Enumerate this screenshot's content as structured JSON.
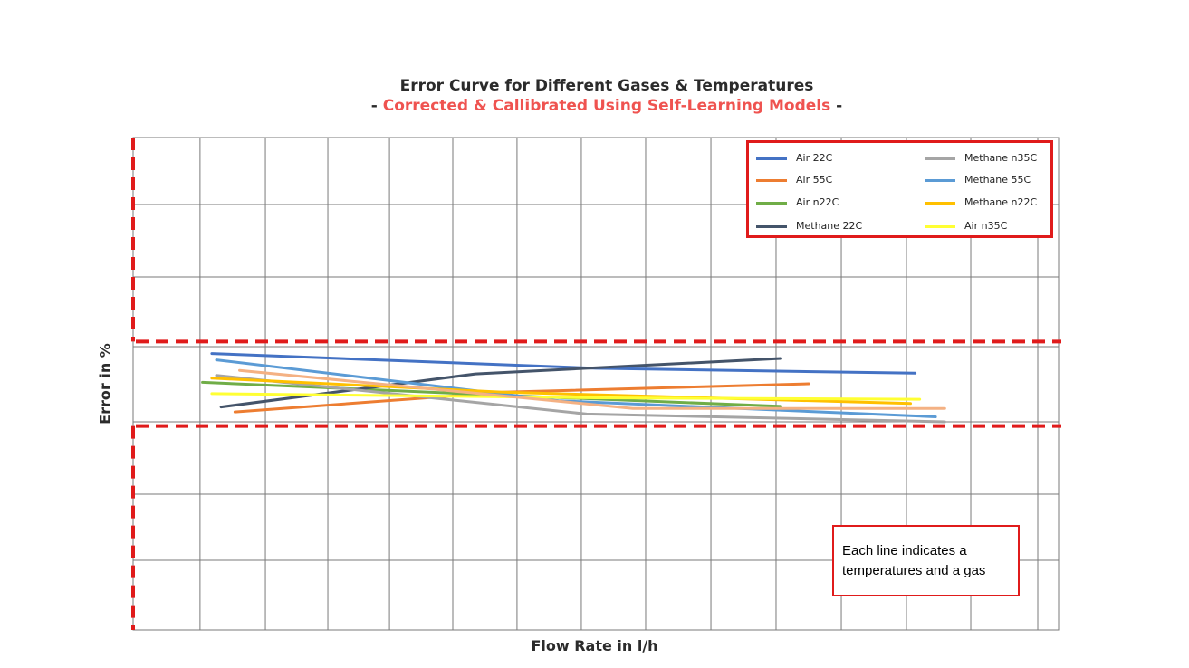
{
  "title": "Error Curve for Different Gases & Temperatures",
  "subtitle": {
    "prefix": "- ",
    "highlight": "Corrected & Callibrated Using Self-Learning Models",
    "suffix": " -"
  },
  "note": "Each line indicates a temperatures and a gas",
  "colors": {
    "tolerance": "#e01b1b",
    "grid": "#7a7a7a"
  },
  "chart_data": {
    "type": "line",
    "title": "Error Curve for Different Gases & Temperatures",
    "subtitle": "- Corrected & Callibrated Using Self-Learning Models -",
    "xlabel": "Flow Rate in l/h",
    "ylabel": "Error in %",
    "tick_labels_shown": false,
    "grid": true,
    "xlim": [
      0,
      1
    ],
    "ylim": [
      -4,
      3
    ],
    "legend_position": "top-right",
    "tolerance_band": {
      "upper": 0.1,
      "lower": -1.1,
      "color": "#e01b1b",
      "style": "dashed"
    },
    "series": [
      {
        "name": "Air 22C",
        "color": "#4472c4",
        "x": [
          0.085,
          0.5,
          0.845
        ],
        "y": [
          -0.07,
          -0.28,
          -0.35
        ]
      },
      {
        "name": "Air 55C",
        "color": "#ed7d31",
        "x": [
          0.11,
          0.4,
          0.73
        ],
        "y": [
          -0.9,
          -0.62,
          -0.5
        ]
      },
      {
        "name": "Air n22C",
        "color": "#70ad47",
        "x": [
          0.075,
          0.39,
          0.7
        ],
        "y": [
          -0.48,
          -0.66,
          -0.82
        ]
      },
      {
        "name": "Methane 22C",
        "color": "#44546a",
        "x": [
          0.095,
          0.37,
          0.7
        ],
        "y": [
          -0.83,
          -0.36,
          -0.14
        ]
      },
      {
        "name": "Methane n35C",
        "color": "#a5a5a5",
        "x": [
          0.09,
          0.49,
          0.877
        ],
        "y": [
          -0.38,
          -0.93,
          -1.04
        ]
      },
      {
        "name": "Methane 55C",
        "color": "#5b9bd5",
        "x": [
          0.09,
          0.46,
          0.867
        ],
        "y": [
          -0.16,
          -0.74,
          -0.97
        ]
      },
      {
        "name": "Methane n22C",
        "color": "#ffc000",
        "x": [
          0.085,
          0.4,
          0.84
        ],
        "y": [
          -0.42,
          -0.62,
          -0.78
        ]
      },
      {
        "name": "Air n35C",
        "color": "#ffff33",
        "x": [
          0.085,
          0.5,
          0.85
        ],
        "y": [
          -0.64,
          -0.7,
          -0.72
        ]
      },
      {
        "name": "",
        "color": "#f4b183",
        "x": [
          0.115,
          0.54,
          0.877
        ],
        "y": [
          -0.31,
          -0.85,
          -0.85
        ]
      }
    ]
  }
}
